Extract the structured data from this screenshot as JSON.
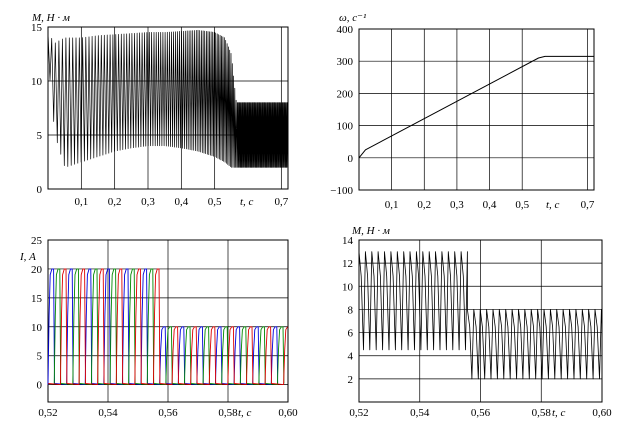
{
  "chart_data": [
    {
      "type": "line",
      "title": "M, Н · м",
      "xlabel": "t, с",
      "ylabel": "",
      "xlim": [
        0,
        0.72
      ],
      "ylim": [
        0,
        15
      ],
      "x_ticks": [
        {
          "value": 0.1,
          "label": "0,1"
        },
        {
          "value": 0.2,
          "label": "0,2"
        },
        {
          "value": 0.3,
          "label": "0,3"
        },
        {
          "value": 0.4,
          "label": "0,4"
        },
        {
          "value": 0.5,
          "label": "0,5"
        },
        {
          "value": 0.7,
          "label": "0,7"
        }
      ],
      "y_ticks": [
        {
          "value": 0,
          "label": "0"
        },
        {
          "value": 5,
          "label": "5"
        },
        {
          "value": 10,
          "label": "10"
        },
        {
          "value": 15,
          "label": "15"
        }
      ],
      "grid": true,
      "series": [
        {
          "color": "#000000",
          "envelope": {
            "x": [
              0,
              0.02,
              0.05,
              0.1,
              0.15,
              0.2,
              0.25,
              0.3,
              0.35,
              0.4,
              0.45,
              0.5,
              0.53,
              0.55,
              0.565,
              0.6,
              0.72
            ],
            "upper": [
              14.5,
              13.5,
              14.0,
              14.0,
              14.2,
              14.3,
              14.4,
              14.5,
              14.5,
              14.6,
              14.7,
              14.5,
              14.0,
              12.5,
              8.0,
              8.0,
              8.0
            ],
            "lower": [
              12.0,
              5.0,
              2.0,
              2.5,
              3.0,
              3.5,
              3.8,
              4.0,
              4.0,
              3.8,
              3.5,
              3.0,
              2.5,
              2.0,
              2.0,
              2.0,
              2.0
            ]
          }
        }
      ]
    },
    {
      "type": "line",
      "title": "ω, с⁻¹",
      "xlabel": "t, с",
      "ylabel": "",
      "xlim": [
        0,
        0.72
      ],
      "ylim": [
        -100,
        400
      ],
      "x_ticks": [
        {
          "value": 0.1,
          "label": "0,1"
        },
        {
          "value": 0.2,
          "label": "0,2"
        },
        {
          "value": 0.3,
          "label": "0,3"
        },
        {
          "value": 0.4,
          "label": "0,4"
        },
        {
          "value": 0.5,
          "label": "0,5"
        },
        {
          "value": 0.7,
          "label": "0,7"
        }
      ],
      "y_ticks": [
        {
          "value": -100,
          "label": "−100"
        },
        {
          "value": 0,
          "label": "0"
        },
        {
          "value": 100,
          "label": "100"
        },
        {
          "value": 200,
          "label": "200"
        },
        {
          "value": 300,
          "label": "300"
        },
        {
          "value": 400,
          "label": "400"
        }
      ],
      "grid": true,
      "series": [
        {
          "color": "#000000",
          "x": [
            0,
            0.02,
            0.55,
            0.57,
            0.72
          ],
          "y": [
            0,
            25,
            310,
            315,
            315
          ]
        }
      ]
    },
    {
      "type": "line",
      "title": "I, А",
      "xlabel": "t, с",
      "ylabel": "",
      "xlim": [
        0.52,
        0.6
      ],
      "ylim": [
        -3,
        25
      ],
      "x_ticks": [
        {
          "value": 0.52,
          "label": "0,52"
        },
        {
          "value": 0.54,
          "label": "0,54"
        },
        {
          "value": 0.56,
          "label": "0,56"
        },
        {
          "value": 0.58,
          "label": "0,58"
        },
        {
          "value": 0.6,
          "label": "0,60"
        }
      ],
      "y_ticks": [
        {
          "value": 0,
          "label": "0"
        },
        {
          "value": 5,
          "label": "5"
        },
        {
          "value": 10,
          "label": "10"
        },
        {
          "value": 15,
          "label": "15"
        },
        {
          "value": 20,
          "label": "20"
        },
        {
          "value": 25,
          "label": "25"
        }
      ],
      "grid": true,
      "series": [
        {
          "color": "#0000dd",
          "phase": 0.0
        },
        {
          "color": "#008800",
          "phase": 0.3333
        },
        {
          "color": "#dd0000",
          "phase": 0.6667
        }
      ],
      "pulse_period": 0.0062,
      "pulse_peak_before": 20,
      "pulse_peak_after": 10,
      "transition_t": 0.557
    },
    {
      "type": "line",
      "title": "M, Н · м",
      "xlabel": "t, с",
      "ylabel": "",
      "xlim": [
        0.52,
        0.6
      ],
      "ylim": [
        0,
        14
      ],
      "x_ticks": [
        {
          "value": 0.52,
          "label": "0,52"
        },
        {
          "value": 0.54,
          "label": "0,54"
        },
        {
          "value": 0.56,
          "label": "0,56"
        },
        {
          "value": 0.58,
          "label": "0,58"
        },
        {
          "value": 0.6,
          "label": "0,60"
        }
      ],
      "y_ticks": [
        {
          "value": 2,
          "label": "2"
        },
        {
          "value": 4,
          "label": "4"
        },
        {
          "value": 6,
          "label": "6"
        },
        {
          "value": 8,
          "label": "8"
        },
        {
          "value": 10,
          "label": "10"
        },
        {
          "value": 12,
          "label": "12"
        },
        {
          "value": 14,
          "label": "14"
        }
      ],
      "grid": true,
      "series": [
        {
          "color": "#000000",
          "ripple_period": 0.0021,
          "upper_before": 13,
          "lower_before": 4.5,
          "upper_after": 8,
          "lower_after": 2,
          "transition_t": 0.5545
        }
      ]
    }
  ]
}
